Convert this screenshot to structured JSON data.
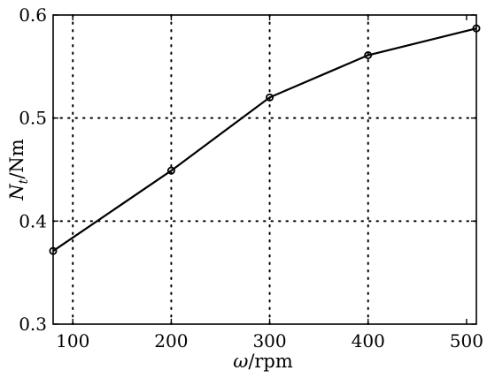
{
  "chart_data": {
    "type": "line",
    "title": "",
    "xlabel": "ω/rpm",
    "ylabel": "Nt/Nm",
    "xlim": [
      80,
      510
    ],
    "ylim": [
      0.3,
      0.6
    ],
    "xticks": [
      100,
      200,
      300,
      400,
      500
    ],
    "xtick_labels": [
      "100",
      "200",
      "300",
      "400",
      "500"
    ],
    "yticks": [
      0.3,
      0.4,
      0.5,
      0.6
    ],
    "ytick_labels": [
      "0.3",
      "0.4",
      "0.5",
      "0.6"
    ],
    "grid": "dotted, at x=200,300,400 and y=0.4,0.5",
    "legend": "none",
    "series": [
      {
        "marker": "open-circle",
        "color": "#000000",
        "x": [
          80,
          200,
          300,
          400,
          510
        ],
        "y": [
          0.371,
          0.449,
          0.52,
          0.561,
          0.587
        ]
      }
    ]
  }
}
